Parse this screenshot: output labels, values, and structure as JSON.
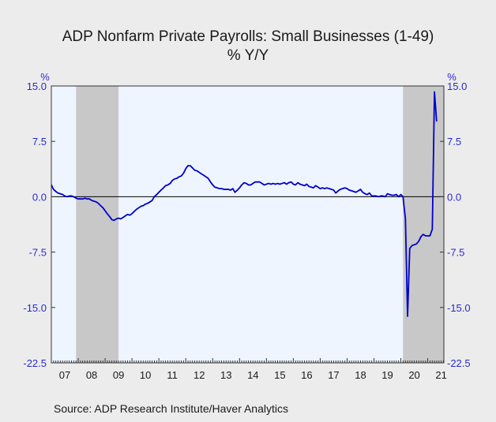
{
  "chart_data": {
    "type": "line",
    "title": "ADP Nonfarm Private Payrolls: Small Businesses (1-49)",
    "subtitle": "% Y/Y",
    "left_unit": "%",
    "right_unit": "%",
    "source": "Source:  ADP Research Institute/Haver Analytics",
    "ylim": [
      -22.5,
      15.0
    ],
    "xlim": [
      2007.0,
      2021.6
    ],
    "y_ticks": [
      15.0,
      7.5,
      0.0,
      -7.5,
      -15.0,
      -22.5
    ],
    "y_tick_labels": [
      "15.0",
      "7.5",
      "0.0",
      "-7.5",
      "-15.0",
      "-22.5"
    ],
    "x_tick_labels": [
      "07",
      "08",
      "09",
      "10",
      "11",
      "12",
      "13",
      "14",
      "15",
      "16",
      "17",
      "18",
      "19",
      "20",
      "21"
    ],
    "x_tick_years": [
      2007,
      2008,
      2009,
      2010,
      2011,
      2012,
      2013,
      2014,
      2015,
      2016,
      2017,
      2018,
      2019,
      2020,
      2021
    ],
    "zero_line": true,
    "grid": false,
    "colors": {
      "plot_background": "#eef5ff",
      "page_background": "#ececec",
      "recession_shading": "#c8c8c8",
      "line": "#0000cc",
      "tick_labels": "#2a2ad0",
      "text": "#1a1a1a"
    },
    "recessions": [
      {
        "start": 2007.92,
        "end": 2009.5
      },
      {
        "start": 2020.08,
        "end": 2021.6
      }
    ],
    "series": [
      {
        "points": [
          [
            2007.0,
            1.6
          ],
          [
            2007.08,
            1.0
          ],
          [
            2007.17,
            0.7
          ],
          [
            2007.25,
            0.5
          ],
          [
            2007.33,
            0.4
          ],
          [
            2007.42,
            0.3
          ],
          [
            2007.5,
            0.1
          ],
          [
            2007.58,
            0.0
          ],
          [
            2007.67,
            0.1
          ],
          [
            2007.75,
            0.1
          ],
          [
            2007.83,
            0.0
          ],
          [
            2007.92,
            -0.2
          ],
          [
            2008.0,
            -0.3
          ],
          [
            2008.08,
            -0.3
          ],
          [
            2008.17,
            -0.3
          ],
          [
            2008.25,
            -0.2
          ],
          [
            2008.33,
            -0.3
          ],
          [
            2008.42,
            -0.3
          ],
          [
            2008.5,
            -0.5
          ],
          [
            2008.58,
            -0.6
          ],
          [
            2008.67,
            -0.7
          ],
          [
            2008.75,
            -0.9
          ],
          [
            2008.83,
            -1.2
          ],
          [
            2008.92,
            -1.5
          ],
          [
            2009.0,
            -1.9
          ],
          [
            2009.08,
            -2.3
          ],
          [
            2009.17,
            -2.7
          ],
          [
            2009.25,
            -3.1
          ],
          [
            2009.33,
            -3.2
          ],
          [
            2009.42,
            -3.0
          ],
          [
            2009.5,
            -2.9
          ],
          [
            2009.58,
            -3.0
          ],
          [
            2009.67,
            -2.8
          ],
          [
            2009.75,
            -2.6
          ],
          [
            2009.83,
            -2.4
          ],
          [
            2009.92,
            -2.5
          ],
          [
            2010.0,
            -2.3
          ],
          [
            2010.08,
            -2.0
          ],
          [
            2010.17,
            -1.7
          ],
          [
            2010.25,
            -1.5
          ],
          [
            2010.33,
            -1.3
          ],
          [
            2010.42,
            -1.2
          ],
          [
            2010.5,
            -1.0
          ],
          [
            2010.58,
            -0.9
          ],
          [
            2010.67,
            -0.7
          ],
          [
            2010.75,
            -0.5
          ],
          [
            2010.83,
            0.0
          ],
          [
            2010.92,
            0.3
          ],
          [
            2011.0,
            0.6
          ],
          [
            2011.08,
            0.9
          ],
          [
            2011.17,
            1.2
          ],
          [
            2011.25,
            1.5
          ],
          [
            2011.33,
            1.6
          ],
          [
            2011.42,
            1.8
          ],
          [
            2011.5,
            2.2
          ],
          [
            2011.58,
            2.4
          ],
          [
            2011.67,
            2.5
          ],
          [
            2011.75,
            2.7
          ],
          [
            2011.83,
            2.8
          ],
          [
            2011.92,
            3.2
          ],
          [
            2012.0,
            3.8
          ],
          [
            2012.08,
            4.2
          ],
          [
            2012.17,
            4.2
          ],
          [
            2012.25,
            3.9
          ],
          [
            2012.33,
            3.6
          ],
          [
            2012.42,
            3.5
          ],
          [
            2012.5,
            3.3
          ],
          [
            2012.58,
            3.1
          ],
          [
            2012.67,
            2.9
          ],
          [
            2012.75,
            2.7
          ],
          [
            2012.83,
            2.5
          ],
          [
            2012.92,
            2.0
          ],
          [
            2013.0,
            1.6
          ],
          [
            2013.08,
            1.3
          ],
          [
            2013.17,
            1.2
          ],
          [
            2013.25,
            1.1
          ],
          [
            2013.33,
            1.1
          ],
          [
            2013.42,
            1.0
          ],
          [
            2013.5,
            1.0
          ],
          [
            2013.58,
            1.0
          ],
          [
            2013.67,
            0.9
          ],
          [
            2013.75,
            1.1
          ],
          [
            2013.83,
            0.6
          ],
          [
            2013.92,
            0.9
          ],
          [
            2014.0,
            1.2
          ],
          [
            2014.08,
            1.6
          ],
          [
            2014.17,
            1.9
          ],
          [
            2014.25,
            1.8
          ],
          [
            2014.33,
            1.6
          ],
          [
            2014.42,
            1.6
          ],
          [
            2014.5,
            1.8
          ],
          [
            2014.58,
            2.0
          ],
          [
            2014.67,
            2.0
          ],
          [
            2014.75,
            2.0
          ],
          [
            2014.83,
            1.8
          ],
          [
            2014.92,
            1.6
          ],
          [
            2015.0,
            1.7
          ],
          [
            2015.08,
            1.8
          ],
          [
            2015.17,
            1.7
          ],
          [
            2015.25,
            1.8
          ],
          [
            2015.33,
            1.7
          ],
          [
            2015.42,
            1.8
          ],
          [
            2015.5,
            1.7
          ],
          [
            2015.58,
            1.8
          ],
          [
            2015.67,
            1.9
          ],
          [
            2015.75,
            1.7
          ],
          [
            2015.83,
            1.9
          ],
          [
            2015.92,
            2.0
          ],
          [
            2016.0,
            1.7
          ],
          [
            2016.08,
            1.6
          ],
          [
            2016.17,
            1.9
          ],
          [
            2016.25,
            1.7
          ],
          [
            2016.33,
            1.6
          ],
          [
            2016.42,
            1.5
          ],
          [
            2016.5,
            1.7
          ],
          [
            2016.58,
            1.4
          ],
          [
            2016.67,
            1.3
          ],
          [
            2016.75,
            1.2
          ],
          [
            2016.83,
            1.5
          ],
          [
            2016.92,
            1.3
          ],
          [
            2017.0,
            1.1
          ],
          [
            2017.08,
            1.2
          ],
          [
            2017.17,
            1.1
          ],
          [
            2017.25,
            1.2
          ],
          [
            2017.33,
            1.1
          ],
          [
            2017.42,
            1.0
          ],
          [
            2017.5,
            0.9
          ],
          [
            2017.58,
            0.5
          ],
          [
            2017.67,
            0.8
          ],
          [
            2017.75,
            1.0
          ],
          [
            2017.83,
            1.1
          ],
          [
            2017.92,
            1.2
          ],
          [
            2018.0,
            1.1
          ],
          [
            2018.08,
            0.9
          ],
          [
            2018.17,
            0.8
          ],
          [
            2018.25,
            0.7
          ],
          [
            2018.33,
            0.6
          ],
          [
            2018.42,
            0.8
          ],
          [
            2018.5,
            1.0
          ],
          [
            2018.58,
            0.6
          ],
          [
            2018.67,
            0.4
          ],
          [
            2018.75,
            0.3
          ],
          [
            2018.83,
            0.5
          ],
          [
            2018.92,
            0.1
          ],
          [
            2019.0,
            0.1
          ],
          [
            2019.08,
            0.1
          ],
          [
            2019.17,
            0.0
          ],
          [
            2019.25,
            0.1
          ],
          [
            2019.33,
            0.1
          ],
          [
            2019.42,
            0.0
          ],
          [
            2019.5,
            0.4
          ],
          [
            2019.58,
            0.3
          ],
          [
            2019.67,
            0.2
          ],
          [
            2019.75,
            0.2
          ],
          [
            2019.83,
            0.3
          ],
          [
            2019.92,
            0.0
          ],
          [
            2020.0,
            0.3
          ],
          [
            2020.08,
            0.0
          ],
          [
            2020.17,
            -3.0
          ],
          [
            2020.25,
            -16.2
          ],
          [
            2020.33,
            -7.0
          ],
          [
            2020.42,
            -6.6
          ],
          [
            2020.5,
            -6.5
          ],
          [
            2020.58,
            -6.4
          ],
          [
            2020.67,
            -6.0
          ],
          [
            2020.75,
            -5.4
          ],
          [
            2020.83,
            -5.1
          ],
          [
            2020.92,
            -5.3
          ],
          [
            2021.0,
            -5.3
          ],
          [
            2021.08,
            -5.3
          ],
          [
            2021.17,
            -4.4
          ],
          [
            2021.25,
            14.2
          ],
          [
            2021.33,
            10.2
          ]
        ]
      }
    ]
  }
}
